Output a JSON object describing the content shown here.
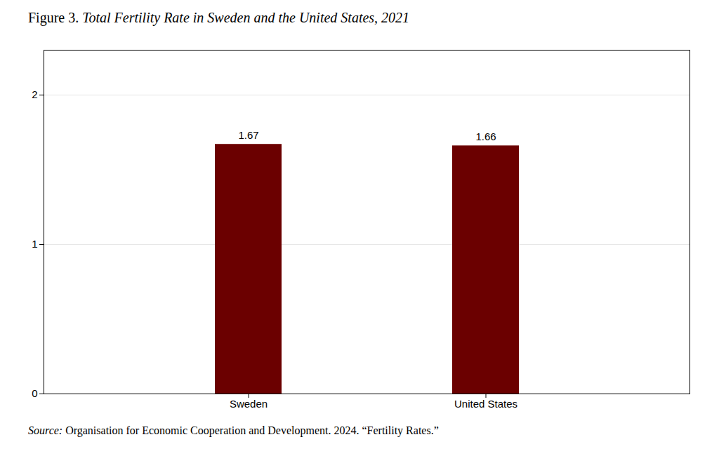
{
  "chart_data": {
    "type": "bar",
    "title": "Figure 3. Total Fertility Rate in Sweden and the United States, 2021",
    "caption": "Source: Organisation for Economic Cooperation and Development. 2024. “Fertility Rates.”",
    "categories": [
      "Sweden",
      "United States"
    ],
    "values": [
      1.67,
      1.66
    ],
    "color": "#6B0000",
    "ylim": [
      0,
      2.3
    ],
    "yticks": [
      0,
      1,
      2
    ],
    "grid": true,
    "data_labels": true
  }
}
